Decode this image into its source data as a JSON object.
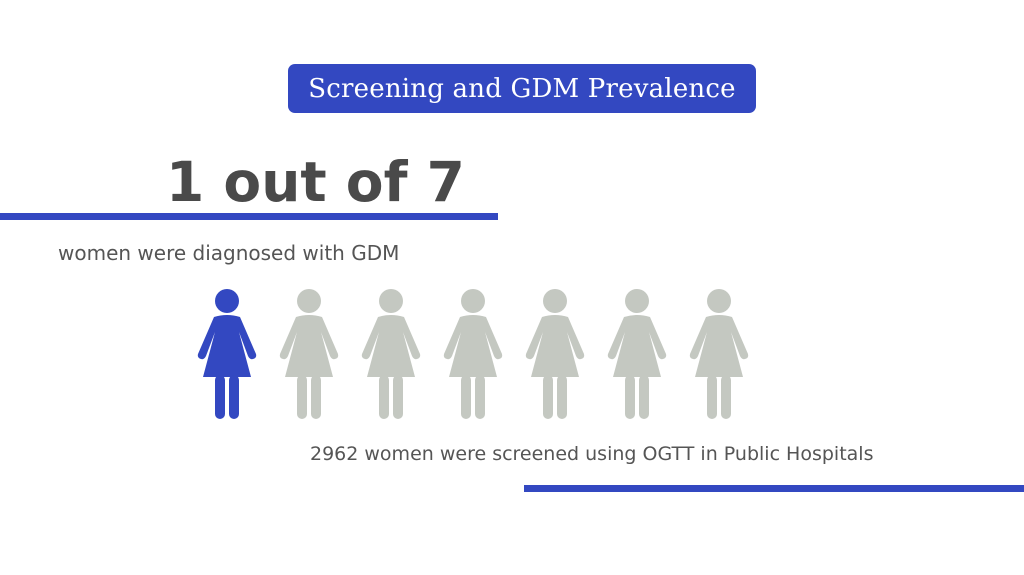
{
  "title": "Screening and GDM Prevalence",
  "headline": "1 out of 7",
  "subline": "women were diagnosed with GDM",
  "footnote": "2962 women were screened using OGTT in Public Hospitals",
  "figures": {
    "total": 7,
    "highlighted": 1,
    "icon": "woman-icon",
    "highlight_color": "#3348c1",
    "base_color": "#c4c8c1"
  },
  "colors": {
    "accent": "#3348c1",
    "text": "#555555",
    "headline": "#4a4a4a"
  }
}
